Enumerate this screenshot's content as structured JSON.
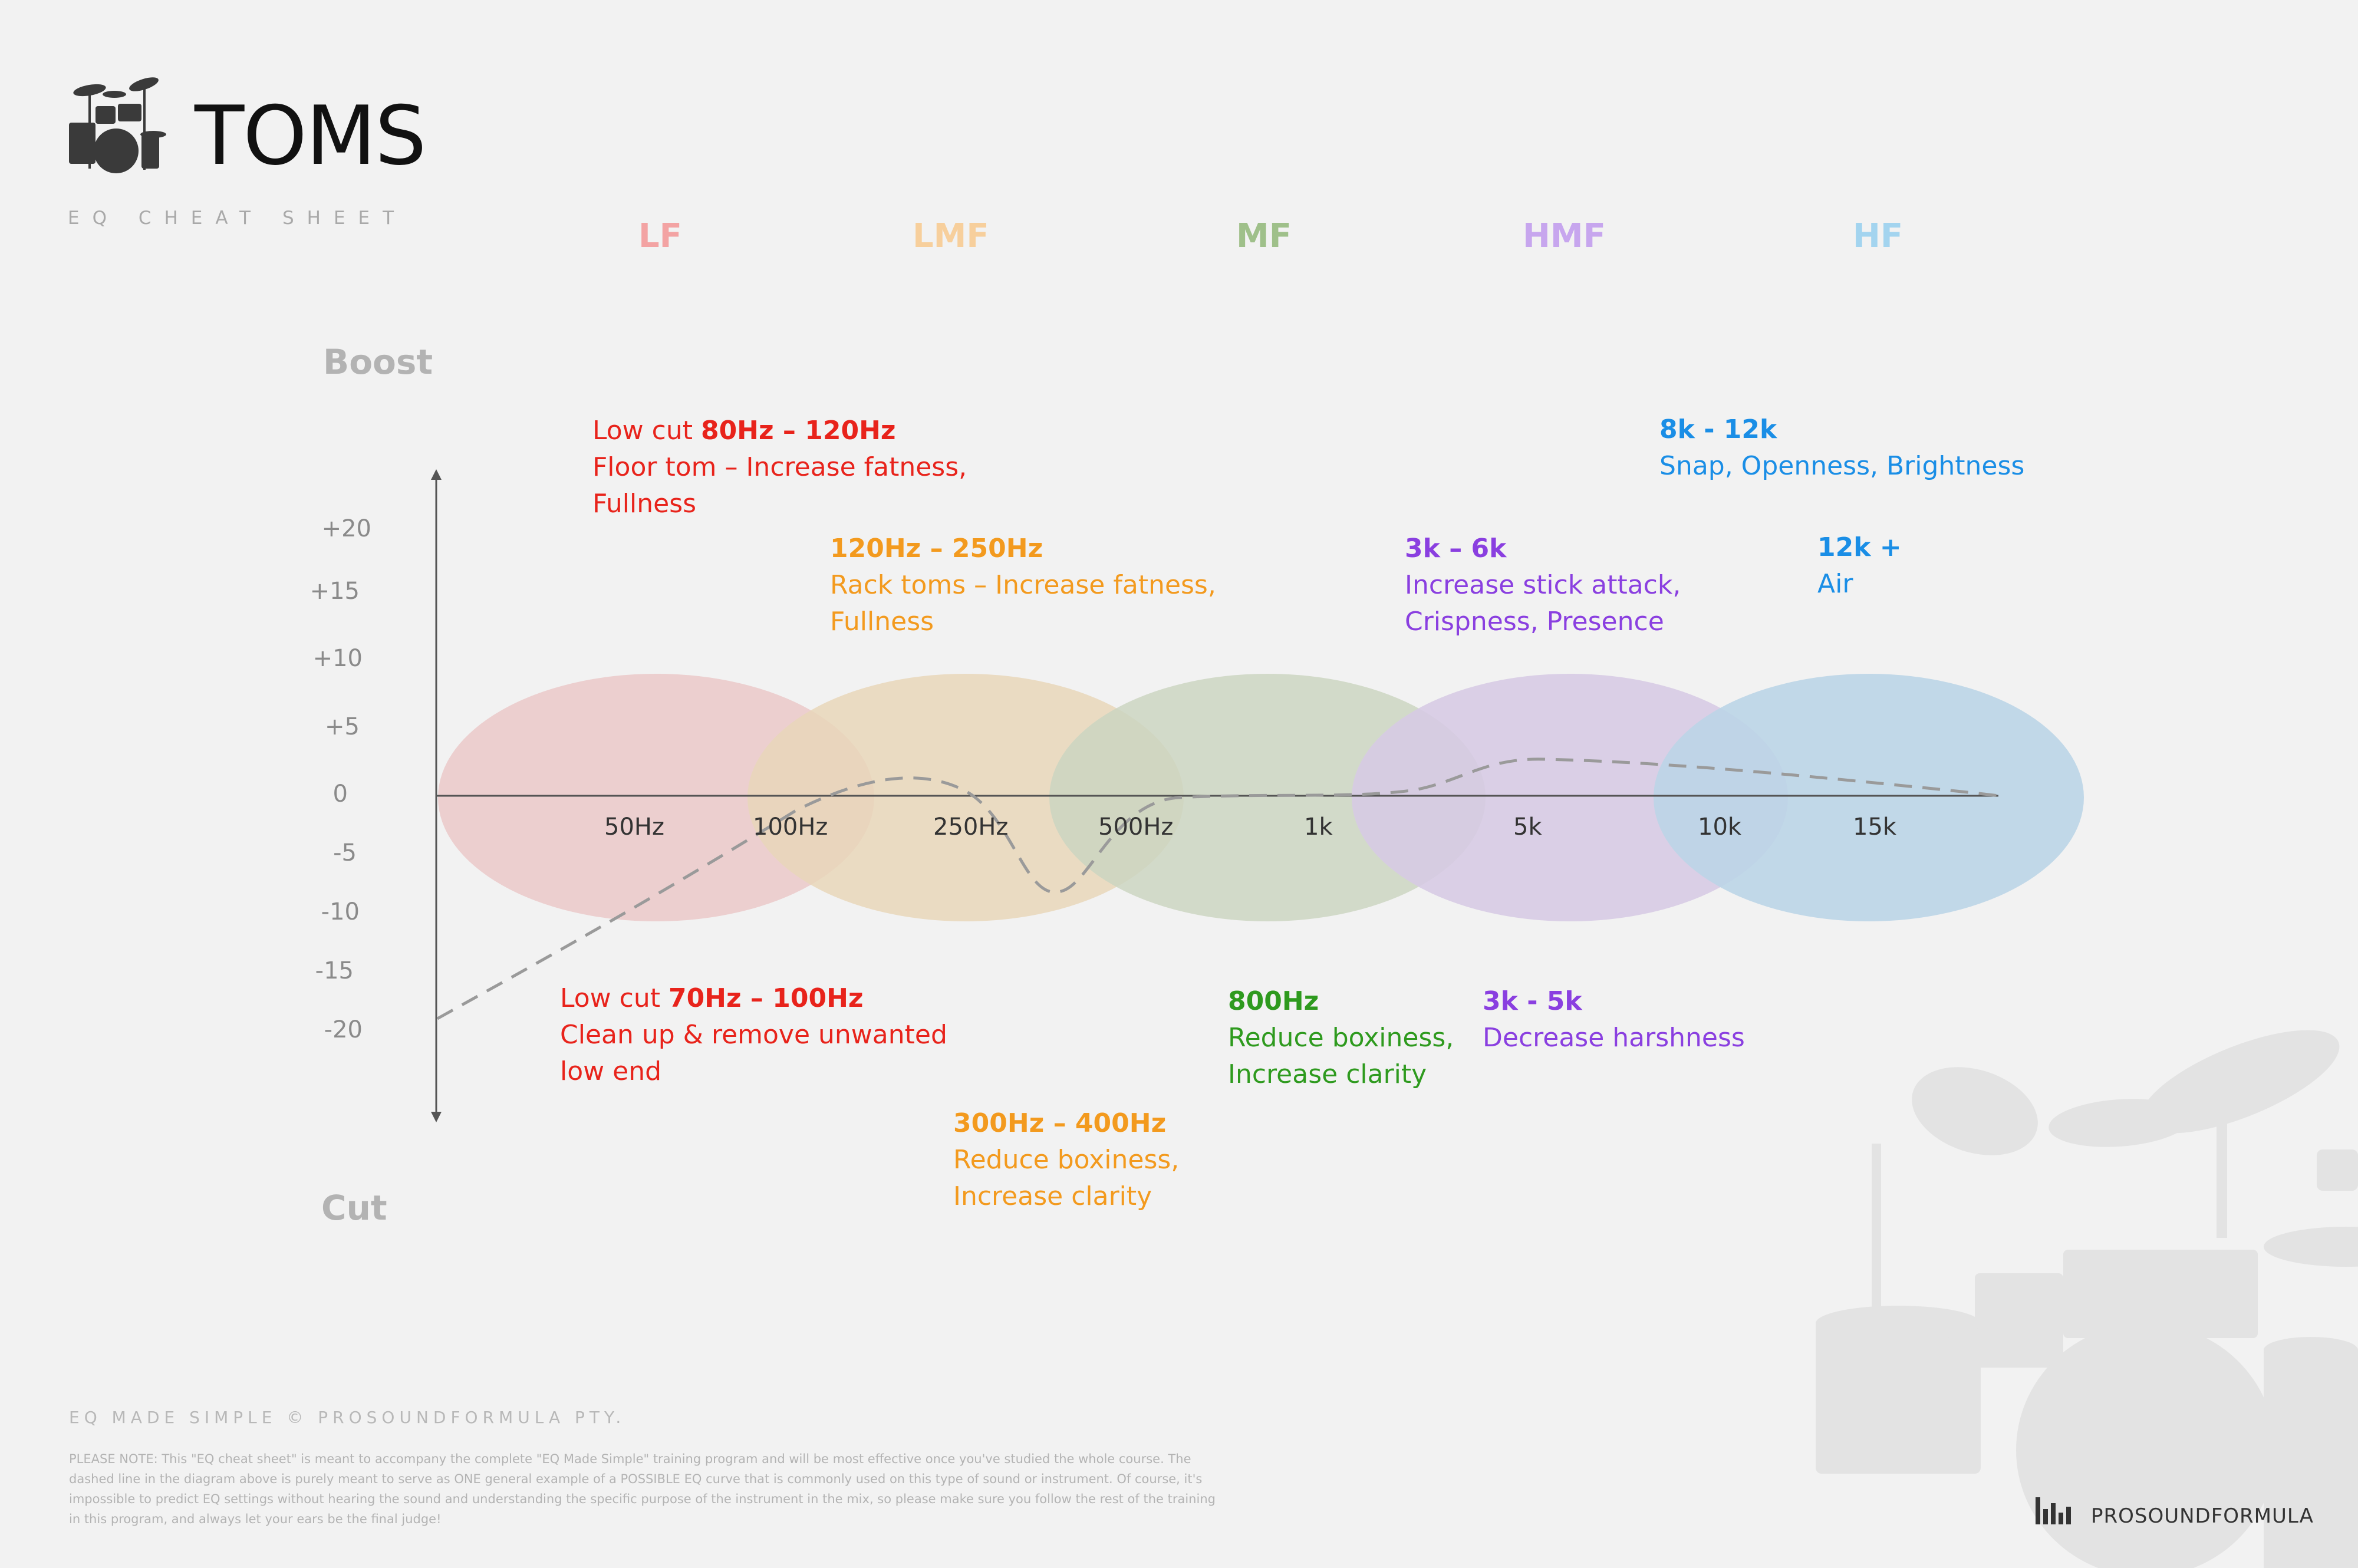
{
  "header": {
    "title": "TOMS",
    "subtitle": "EQ CHEAT SHEET"
  },
  "bands": [
    {
      "label": "LF",
      "color": "#f3a3a3"
    },
    {
      "label": "LMF",
      "color": "#f7cf9c"
    },
    {
      "label": "MF",
      "color": "#9fc08a"
    },
    {
      "label": "HMF",
      "color": "#c7a6ee"
    },
    {
      "label": "HF",
      "color": "#a3d4ef"
    }
  ],
  "axis": {
    "boost_label": "Boost",
    "cut_label": "Cut",
    "y_ticks": [
      "+20",
      "+15",
      "+10",
      "+5",
      "0",
      "-5",
      "-10",
      "-15",
      "-20"
    ],
    "x_ticks": [
      "50Hz",
      "100Hz",
      "250Hz",
      "500Hz",
      "1k",
      "5k",
      "10k",
      "15k"
    ]
  },
  "annotations": {
    "low_cut_boost": {
      "prefix": "Low cut ",
      "range": "80Hz – 120Hz",
      "line1": "Floor tom – Increase fatness,",
      "line2": "Fullness",
      "color": "#e8231b"
    },
    "lmf_boost": {
      "range": "120Hz – 250Hz",
      "line1": "Rack toms – Increase fatness,",
      "line2": "Fullness",
      "color": "#f39a1e"
    },
    "hmf_boost": {
      "range": "3k – 6k",
      "line1": "Increase stick attack,",
      "line2": "Crispness, Presence",
      "color": "#8a3fe0"
    },
    "hf_boost": {
      "range": "8k - 12k",
      "line1": "Snap, Openness, Brightness",
      "color": "#1a8ee6"
    },
    "air_boost": {
      "range": "12k +",
      "line1": "Air",
      "color": "#1a8ee6"
    },
    "low_cut_cut": {
      "prefix": "Low cut ",
      "range": "70Hz – 100Hz",
      "line1": "Clean up & remove unwanted",
      "line2": "low end",
      "color": "#e8231b"
    },
    "lmf_cut": {
      "range": "300Hz – 400Hz",
      "line1": "Reduce boxiness,",
      "line2": "Increase clarity",
      "color": "#f39a1e"
    },
    "mf_cut": {
      "range": "800Hz",
      "line1": "Reduce boxiness,",
      "line2": "Increase clarity",
      "color": "#2e9a1e"
    },
    "hmf_cut": {
      "range": "3k - 5k",
      "line1": "Decrease harshness",
      "color": "#8a3fe0"
    }
  },
  "footer": {
    "heading": "EQ MADE SIMPLE  © PROSOUNDFORMULA PTY.",
    "note": "PLEASE NOTE: This \"EQ cheat sheet\" is meant to accompany the complete \"EQ Made Simple\" training program and will be most effective once you've studied the whole course. The dashed line in the diagram above is purely meant to serve as ONE general example of a POSSIBLE EQ curve that is commonly used on this type of sound or instrument. Of course, it's impossible to predict EQ settings without hearing the sound and understanding the specific purpose of the instrument in the mix, so please make sure you follow the rest of the training in this program, and always let your ears be the final judge!",
    "brand": "PROSOUNDFORMULA"
  }
}
